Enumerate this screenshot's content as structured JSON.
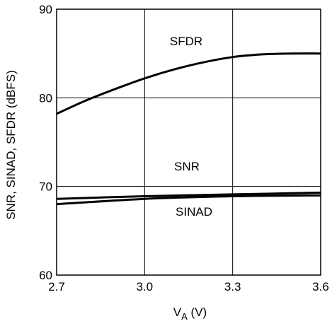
{
  "chart_data": {
    "type": "line",
    "xlabel_main": "V",
    "xlabel_sub": "A",
    "xlabel_unit": " (V)",
    "ylabel": "SNR, SINAD, SFDR (dBFS)",
    "xlim": [
      2.7,
      3.6
    ],
    "ylim": [
      60,
      90
    ],
    "xticks": [
      "2.7",
      "3.0",
      "3.3",
      "3.6"
    ],
    "yticks": [
      "60",
      "70",
      "80",
      "90"
    ],
    "grid": true,
    "series": [
      {
        "name": "SFDR",
        "x": [
          2.7,
          2.8,
          2.9,
          3.0,
          3.1,
          3.2,
          3.3,
          3.4,
          3.5,
          3.6
        ],
        "y": [
          78.2,
          79.7,
          81.0,
          82.2,
          83.2,
          84.0,
          84.6,
          84.9,
          85.0,
          85.0
        ]
      },
      {
        "name": "SNR",
        "x": [
          2.7,
          3.0,
          3.3,
          3.6
        ],
        "y": [
          68.6,
          68.9,
          69.1,
          69.3
        ]
      },
      {
        "name": "SINAD",
        "x": [
          2.7,
          3.0,
          3.3,
          3.6
        ],
        "y": [
          68.0,
          68.6,
          68.9,
          69.0
        ]
      }
    ]
  }
}
